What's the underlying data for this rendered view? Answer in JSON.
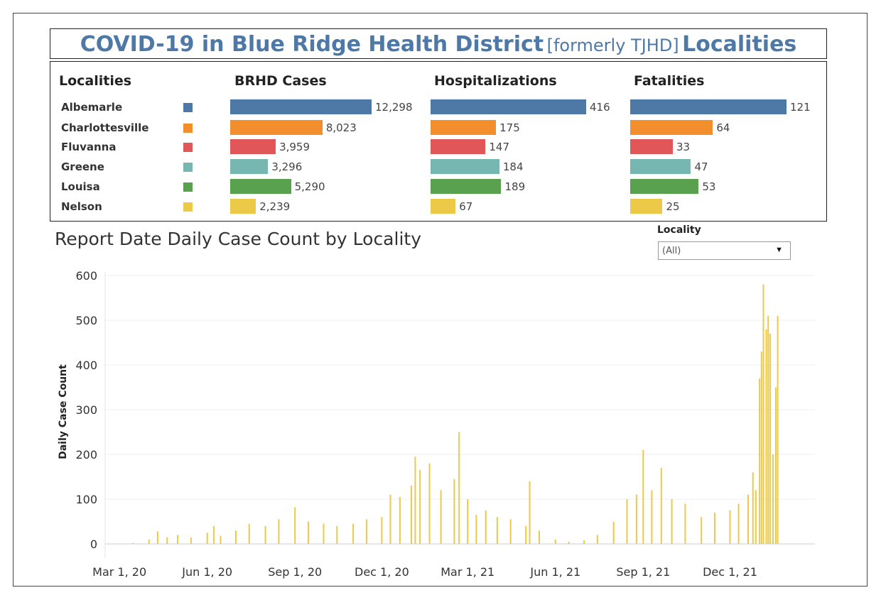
{
  "header": {
    "title_main_1": "COVID-19 in Blue Ridge Health District",
    "title_sub": "[formerly TJHD]",
    "title_main_2": "Localities"
  },
  "summary": {
    "headers": {
      "localities": "Localities",
      "cases": "BRHD Cases",
      "hospitalizations": "Hospitalizations",
      "fatalities": "Fatalities"
    },
    "rows": [
      {
        "name": "Albemarle",
        "color": "#4e79a7",
        "cases": 12298,
        "cases_label": "12,298",
        "hosp": 416,
        "hosp_label": "416",
        "fat": 121,
        "fat_label": "121"
      },
      {
        "name": "Charlottesville",
        "color": "#f28e2b",
        "cases": 8023,
        "cases_label": "8,023",
        "hosp": 175,
        "hosp_label": "175",
        "fat": 64,
        "fat_label": "64"
      },
      {
        "name": "Fluvanna",
        "color": "#e15759",
        "cases": 3959,
        "cases_label": "3,959",
        "hosp": 147,
        "hosp_label": "147",
        "fat": 33,
        "fat_label": "33"
      },
      {
        "name": "Greene",
        "color": "#76b7b2",
        "cases": 3296,
        "cases_label": "3,296",
        "hosp": 184,
        "hosp_label": "184",
        "fat": 47,
        "fat_label": "47"
      },
      {
        "name": "Louisa",
        "color": "#59a14f",
        "cases": 5290,
        "cases_label": "5,290",
        "hosp": 189,
        "hosp_label": "189",
        "fat": 53,
        "fat_label": "53"
      },
      {
        "name": "Nelson",
        "color": "#edc948",
        "cases": 2239,
        "cases_label": "2,239",
        "hosp": 67,
        "hosp_label": "67",
        "fat": 25,
        "fat_label": "25"
      }
    ]
  },
  "filter": {
    "label": "Locality",
    "value": "(All)"
  },
  "chart_data": {
    "type": "bar",
    "title": "Report Date Daily Case Count by Locality",
    "ylabel": "Daily Case Count",
    "xlabel": "",
    "ylim": [
      0,
      600
    ],
    "yticks": [
      0,
      100,
      200,
      300,
      400,
      500,
      600
    ],
    "xlim": [
      "2020-02-15",
      "2022-02-28"
    ],
    "xticks": [
      {
        "date": "2020-03-01",
        "label": "Mar 1, 20"
      },
      {
        "date": "2020-06-01",
        "label": "Jun 1, 20"
      },
      {
        "date": "2020-09-01",
        "label": "Sep 1, 20"
      },
      {
        "date": "2020-12-01",
        "label": "Dec 1, 20"
      },
      {
        "date": "2021-03-01",
        "label": "Mar 1, 21"
      },
      {
        "date": "2021-06-01",
        "label": "Jun 1, 21"
      },
      {
        "date": "2021-09-01",
        "label": "Sep 1, 21"
      },
      {
        "date": "2021-12-01",
        "label": "Dec 1, 21"
      }
    ],
    "bar_color": "#edc948",
    "grid": true,
    "series": [
      {
        "x": [
          "2020-03-15",
          "2020-04-01",
          "2020-04-10",
          "2020-04-20",
          "2020-05-01",
          "2020-05-15",
          "2020-06-01",
          "2020-06-08",
          "2020-06-15",
          "2020-07-01",
          "2020-07-15",
          "2020-08-01",
          "2020-08-15",
          "2020-09-01",
          "2020-09-15",
          "2020-10-01",
          "2020-10-15",
          "2020-11-01",
          "2020-11-15",
          "2020-12-01",
          "2020-12-10",
          "2020-12-20",
          "2021-01-01",
          "2021-01-05",
          "2021-01-10",
          "2021-01-20",
          "2021-02-01",
          "2021-02-15",
          "2021-02-20",
          "2021-03-01",
          "2021-03-10",
          "2021-03-20",
          "2021-04-01",
          "2021-04-15",
          "2021-05-01",
          "2021-05-05",
          "2021-05-15",
          "2021-06-01",
          "2021-06-15",
          "2021-07-01",
          "2021-07-15",
          "2021-08-01",
          "2021-08-15",
          "2021-08-25",
          "2021-09-01",
          "2021-09-10",
          "2021-09-20",
          "2021-10-01",
          "2021-10-15",
          "2021-11-01",
          "2021-11-15",
          "2021-12-01",
          "2021-12-10",
          "2021-12-20",
          "2021-12-25",
          "2021-12-28",
          "2022-01-01",
          "2022-01-03",
          "2022-01-05",
          "2022-01-08",
          "2022-01-10",
          "2022-01-12",
          "2022-01-15",
          "2022-01-18",
          "2022-01-20"
        ],
        "y": [
          2,
          10,
          28,
          15,
          20,
          14,
          25,
          40,
          18,
          30,
          45,
          40,
          55,
          82,
          50,
          45,
          40,
          45,
          55,
          60,
          110,
          105,
          130,
          195,
          165,
          180,
          120,
          145,
          250,
          100,
          65,
          75,
          60,
          55,
          40,
          140,
          30,
          10,
          5,
          8,
          20,
          50,
          100,
          110,
          210,
          120,
          170,
          100,
          90,
          60,
          70,
          75,
          90,
          110,
          160,
          120,
          370,
          430,
          580,
          480,
          510,
          470,
          200,
          350,
          510
        ]
      }
    ]
  }
}
